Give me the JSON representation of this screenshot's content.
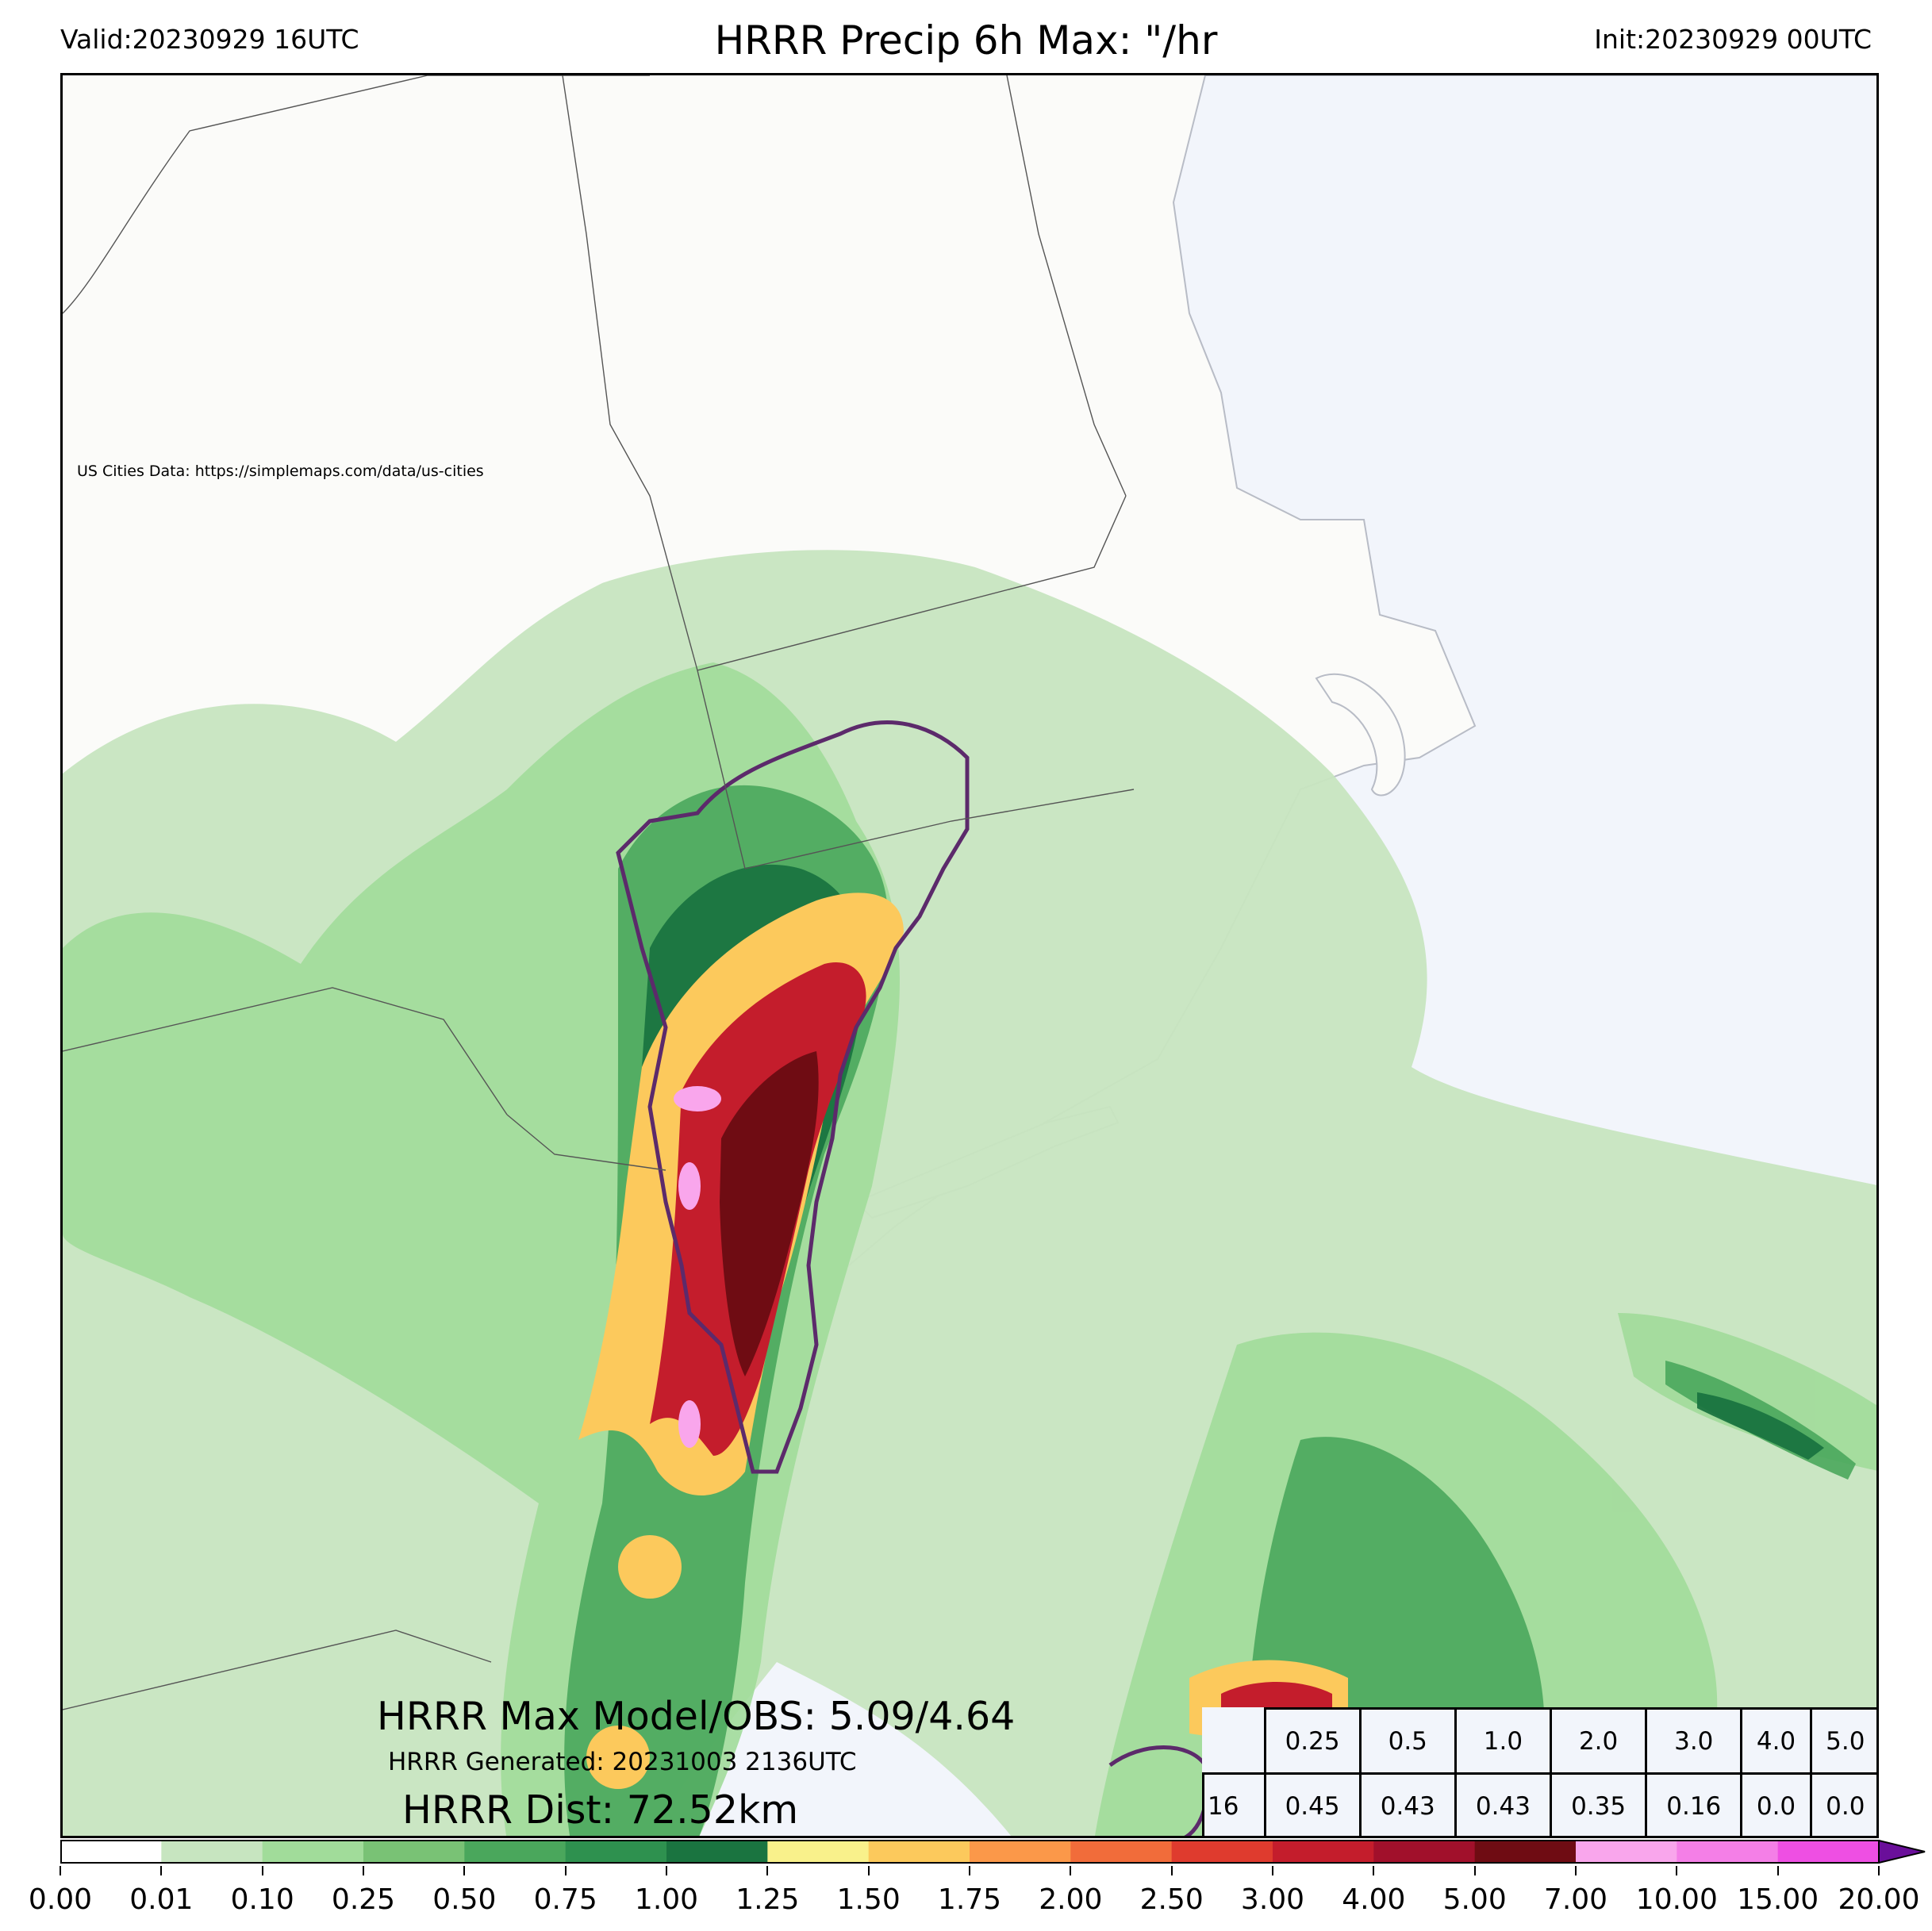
{
  "header": {
    "title": "HRRR Precip 6h Max: \"/hr",
    "valid": "Valid:20230929 16UTC",
    "init": "Init:20230929 00UTC"
  },
  "map": {
    "credit": "US Cities Data: https://simplemaps.com/data/us-cities",
    "max_line": "HRRR Max Model/OBS: 5.09/4.64",
    "generated_line": "HRRR Generated: 20231003 2136UTC",
    "dist_line": "HRRR Dist: 72.52km",
    "land_color": "#fbfbf9",
    "ocean_color": "#f2f5fb"
  },
  "stats_table": {
    "thresholds": [
      "0.25",
      "0.5",
      "1.0",
      "2.0",
      "3.0",
      "4.0",
      "5.0"
    ],
    "row_label": "16",
    "values": [
      "0.45",
      "0.43",
      "0.43",
      "0.35",
      "0.16",
      "0.0",
      "0.0"
    ]
  },
  "colorbar": {
    "levels": [
      "0.00",
      "0.01",
      "0.10",
      "0.25",
      "0.50",
      "0.75",
      "1.00",
      "1.25",
      "1.50",
      "1.75",
      "2.00",
      "2.50",
      "3.00",
      "4.00",
      "5.00",
      "7.00",
      "10.00",
      "15.00",
      "20.00"
    ],
    "colors": [
      "#ffffff",
      "#c7e5c0",
      "#a1dc9a",
      "#79c275",
      "#4aa75c",
      "#2e914f",
      "#1a7440",
      "#f9f18b",
      "#fcc95c",
      "#fb9849",
      "#f16c3a",
      "#df3b2e",
      "#c41d2c",
      "#a1102b",
      "#6f0c13",
      "#f9a6ec",
      "#f47fe7",
      "#ee4fe3",
      "#e31be6",
      "#a519de",
      "#6a0f9a"
    ]
  }
}
